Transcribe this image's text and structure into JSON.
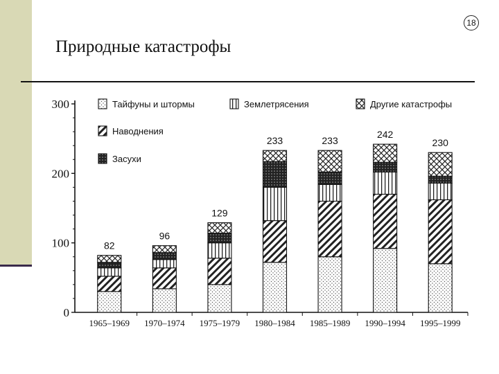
{
  "slide": {
    "number": "18",
    "title": "Природные катастрофы"
  },
  "chart_data": {
    "type": "bar",
    "stacked": true,
    "title": "",
    "xlabel": "",
    "ylabel": "",
    "ylim": [
      0,
      300
    ],
    "yticks": [
      "0",
      "100",
      "200",
      "300"
    ],
    "grid": false,
    "legend_position": "top",
    "categories": [
      "1965–1969",
      "1970–1974",
      "1975–1979",
      "1980–1984",
      "1985–1989",
      "1990–1994",
      "1995–1999"
    ],
    "totals": [
      "82",
      "96",
      "129",
      "233",
      "233",
      "242",
      "230"
    ],
    "series": [
      {
        "name": "Тайфуны и штормы",
        "pattern": "dots",
        "values": [
          30,
          34,
          40,
          72,
          80,
          92,
          70
        ]
      },
      {
        "name": "Наводнения",
        "pattern": "diagonal",
        "values": [
          22,
          30,
          38,
          60,
          80,
          78,
          92
        ]
      },
      {
        "name": "Землетрясения",
        "pattern": "vertical",
        "values": [
          12,
          12,
          22,
          48,
          24,
          32,
          24
        ]
      },
      {
        "name": "Засухи",
        "pattern": "dark",
        "values": [
          8,
          10,
          14,
          37,
          18,
          14,
          10
        ]
      },
      {
        "name": "Другие катастрофы",
        "pattern": "crosshatch",
        "values": [
          10,
          10,
          15,
          16,
          31,
          26,
          34
        ]
      }
    ]
  }
}
